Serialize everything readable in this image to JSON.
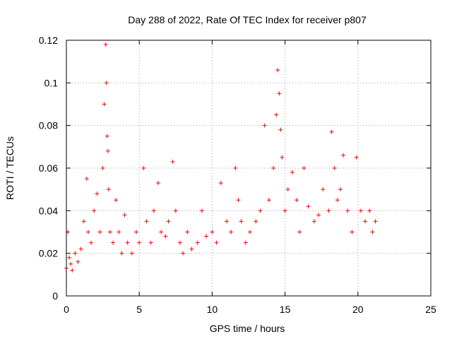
{
  "chart_data": {
    "type": "scatter",
    "title": "Day 288 of 2022, Rate Of TEC Index for receiver p807",
    "xlabel": "GPS time / hours",
    "ylabel": "ROTI / TECUs",
    "xlim": [
      0,
      25
    ],
    "ylim": [
      0,
      0.12
    ],
    "x_ticks": [
      0,
      5,
      10,
      15,
      20,
      25
    ],
    "y_ticks": [
      0,
      0.02,
      0.04,
      0.06,
      0.08,
      0.1,
      0.12
    ],
    "x_tick_labels": [
      "0",
      "5",
      "10",
      "15",
      "20",
      "25"
    ],
    "y_tick_labels": [
      "0",
      "0.02",
      "0.04",
      "0.06",
      "0.08",
      "0.1",
      "0.12"
    ],
    "grid": true,
    "marker": "plus",
    "color": "#ff0000",
    "data_extent_x": [
      0,
      21.2
    ],
    "series": [
      {
        "x": [
          0.0,
          0.1,
          0.2,
          0.3,
          0.4,
          0.6,
          0.8,
          1.0,
          1.2,
          1.4,
          1.5,
          1.7,
          1.9,
          2.1,
          2.3,
          2.5,
          2.6,
          2.7,
          2.75,
          2.8,
          2.85,
          2.9,
          3.0,
          3.2,
          3.4,
          3.6,
          3.8,
          4.0,
          4.2,
          4.5,
          4.8,
          5.0,
          5.3,
          5.5,
          5.8,
          6.0,
          6.3,
          6.5,
          6.8,
          7.0,
          7.3,
          7.5,
          7.8,
          8.0,
          8.3,
          8.6,
          9.0,
          9.3,
          9.6,
          10.0,
          10.3,
          10.6,
          11.0,
          11.3,
          11.6,
          11.8,
          12.0,
          12.3,
          12.6,
          13.0,
          13.3,
          13.6,
          13.9,
          14.2,
          14.4,
          14.5,
          14.6,
          14.7,
          14.8,
          15.0,
          15.2,
          15.5,
          15.8,
          16.0,
          16.3,
          16.6,
          17.0,
          17.3,
          17.6,
          18.0,
          18.2,
          18.4,
          18.6,
          18.8,
          19.0,
          19.3,
          19.6,
          19.9,
          20.2,
          20.5,
          20.8,
          21.0,
          21.2
        ],
        "y": [
          0.013,
          0.03,
          0.018,
          0.015,
          0.012,
          0.02,
          0.016,
          0.022,
          0.035,
          0.055,
          0.03,
          0.025,
          0.04,
          0.048,
          0.03,
          0.06,
          0.09,
          0.118,
          0.1,
          0.075,
          0.068,
          0.05,
          0.03,
          0.025,
          0.045,
          0.03,
          0.02,
          0.038,
          0.025,
          0.02,
          0.03,
          0.025,
          0.06,
          0.035,
          0.025,
          0.04,
          0.053,
          0.03,
          0.028,
          0.035,
          0.063,
          0.04,
          0.025,
          0.02,
          0.03,
          0.022,
          0.025,
          0.04,
          0.028,
          0.03,
          0.025,
          0.053,
          0.035,
          0.03,
          0.06,
          0.045,
          0.035,
          0.025,
          0.03,
          0.035,
          0.04,
          0.08,
          0.045,
          0.06,
          0.085,
          0.106,
          0.095,
          0.078,
          0.065,
          0.04,
          0.05,
          0.058,
          0.045,
          0.03,
          0.06,
          0.042,
          0.035,
          0.038,
          0.05,
          0.04,
          0.077,
          0.06,
          0.045,
          0.05,
          0.066,
          0.04,
          0.03,
          0.065,
          0.04,
          0.035,
          0.04,
          0.03,
          0.035
        ]
      }
    ]
  }
}
